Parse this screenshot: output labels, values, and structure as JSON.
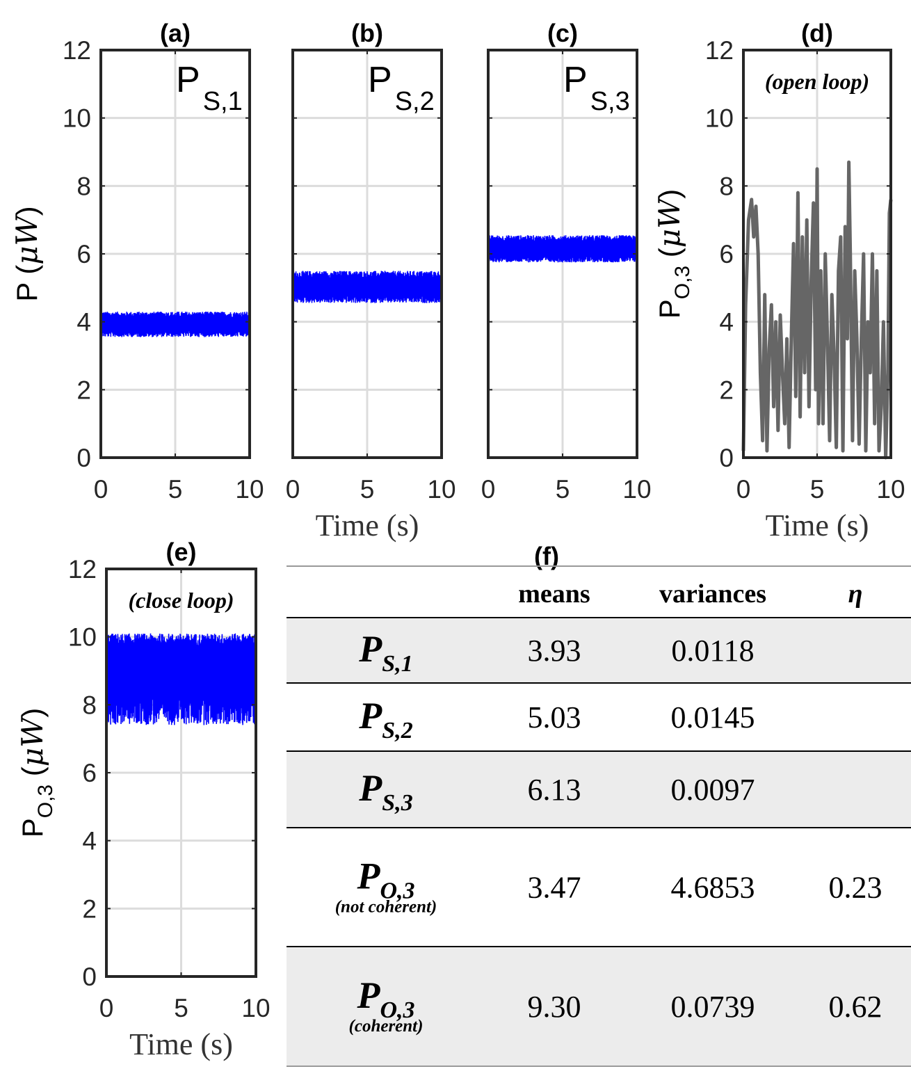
{
  "chart_data": [
    {
      "id": "a",
      "type": "line",
      "title": "(a)",
      "series_label": {
        "main": "P",
        "sub": "S,1"
      },
      "xlabel": "",
      "ylabel": {
        "main": "P (",
        "unit": "μW",
        "close": ")"
      },
      "xlim": [
        0,
        10
      ],
      "ylim": [
        0,
        12
      ],
      "xticks": [
        "0",
        "5",
        "10"
      ],
      "yticks": [
        "0",
        "2",
        "4",
        "6",
        "8",
        "10",
        "12"
      ],
      "grid": true,
      "line_color": "#0000ff",
      "series": [
        {
          "name": "P_S,1",
          "mean": 3.93,
          "min": 3.55,
          "max": 4.3
        }
      ]
    },
    {
      "id": "b",
      "type": "line",
      "title": "(b)",
      "series_label": {
        "main": "P",
        "sub": "S,2"
      },
      "xlabel": "Time (s)",
      "ylabel": "",
      "xlim": [
        0,
        10
      ],
      "ylim": [
        0,
        12
      ],
      "xticks": [
        "0",
        "5",
        "10"
      ],
      "grid": true,
      "line_color": "#0000ff",
      "series": [
        {
          "name": "P_S,2",
          "mean": 5.03,
          "min": 4.55,
          "max": 5.5
        }
      ]
    },
    {
      "id": "c",
      "type": "line",
      "title": "(c)",
      "series_label": {
        "main": "P",
        "sub": "S,3"
      },
      "xlabel": "",
      "ylabel": "",
      "xlim": [
        0,
        10
      ],
      "ylim": [
        0,
        12
      ],
      "xticks": [
        "0",
        "5",
        "10"
      ],
      "grid": true,
      "line_color": "#0000ff",
      "series": [
        {
          "name": "P_S,3",
          "mean": 6.13,
          "min": 5.75,
          "max": 6.55
        }
      ]
    },
    {
      "id": "d",
      "type": "line",
      "title": "(d)",
      "annotation": "(open loop)",
      "xlabel": "Time (s)",
      "ylabel": {
        "main": "P",
        "sub": "O,3",
        "unit_open": " (",
        "unit": "μW",
        "close": ")"
      },
      "xlim": [
        0,
        10
      ],
      "ylim": [
        0,
        12
      ],
      "xticks": [
        "0",
        "5",
        "10"
      ],
      "yticks": [
        "0",
        "2",
        "4",
        "6",
        "8",
        "10",
        "12"
      ],
      "grid": true,
      "line_color": "#666666",
      "series": [
        {
          "name": "P_O,3 open loop",
          "x": [
            0,
            0.15,
            0.35,
            0.55,
            0.7,
            0.85,
            1.0,
            1.15,
            1.3,
            1.45,
            1.6,
            1.75,
            1.9,
            2.05,
            2.2,
            2.35,
            2.5,
            2.65,
            2.8,
            2.95,
            3.1,
            3.25,
            3.4,
            3.55,
            3.7,
            3.85,
            4.0,
            4.15,
            4.3,
            4.45,
            4.6,
            4.75,
            4.9,
            5.0,
            5.1,
            5.25,
            5.4,
            5.55,
            5.7,
            5.85,
            6.0,
            6.15,
            6.3,
            6.45,
            6.6,
            6.75,
            6.9,
            7.05,
            7.15,
            7.25,
            7.4,
            7.55,
            7.7,
            7.85,
            8.0,
            8.15,
            8.3,
            8.45,
            8.6,
            8.75,
            8.9,
            9.05,
            9.2,
            9.35,
            9.5,
            9.65,
            9.8,
            9.9,
            10.0
          ],
          "y": [
            0.2,
            4.5,
            7.0,
            7.6,
            6.5,
            7.4,
            6.0,
            2.5,
            0.5,
            4.8,
            0.2,
            3.2,
            4.5,
            1.5,
            4.0,
            0.8,
            4.2,
            2.5,
            1.0,
            3.5,
            0.3,
            3.5,
            6.3,
            1.8,
            7.8,
            1.2,
            6.5,
            2.5,
            7.0,
            1.5,
            5.2,
            7.5,
            2.0,
            8.5,
            1.0,
            5.5,
            1.0,
            6.0,
            3.5,
            0.5,
            4.8,
            3.0,
            0.3,
            5.5,
            6.5,
            0.2,
            6.8,
            3.5,
            8.7,
            6.0,
            0.5,
            5.5,
            3.5,
            0.4,
            3.5,
            6.0,
            0.2,
            4.0,
            2.5,
            6.0,
            1.0,
            5.5,
            0.2,
            1.5,
            4.0,
            0.0,
            2.5,
            7.2,
            7.6
          ]
        }
      ]
    },
    {
      "id": "e",
      "type": "line",
      "title": "(e)",
      "annotation": "(close loop)",
      "xlabel": "Time (s)",
      "ylabel": {
        "main": "P",
        "sub": "O,3",
        "unit_open": " (",
        "unit": "μW",
        "close": ")"
      },
      "xlim": [
        0,
        10
      ],
      "ylim": [
        0,
        12
      ],
      "xticks": [
        "0",
        "5",
        "10"
      ],
      "yticks": [
        "0",
        "2",
        "4",
        "6",
        "8",
        "10",
        "12"
      ],
      "grid": true,
      "line_color": "#0000ff",
      "series": [
        {
          "name": "P_O,3 close loop",
          "mean": 9.3,
          "min": 7.4,
          "max": 10.1
        }
      ]
    },
    {
      "id": "f",
      "type": "table",
      "title": "(f)",
      "columns": [
        "",
        "means",
        "variances",
        "η"
      ],
      "rows": [
        {
          "label": "P",
          "sub": "S,1",
          "note": "",
          "mean": "3.93",
          "variance": "0.0118",
          "eta": "",
          "shaded": true
        },
        {
          "label": "P",
          "sub": "S,2",
          "note": "",
          "mean": "5.03",
          "variance": "0.0145",
          "eta": "",
          "shaded": false
        },
        {
          "label": "P",
          "sub": "S,3",
          "note": "",
          "mean": "6.13",
          "variance": "0.0097",
          "eta": "",
          "shaded": true
        },
        {
          "label": "P",
          "sub": "O,3",
          "note": "(not coherent)",
          "mean": "3.47",
          "variance": "4.6853",
          "eta": "0.23",
          "shaded": false
        },
        {
          "label": "P",
          "sub": "O,3",
          "note": "(coherent)",
          "mean": "9.30",
          "variance": "0.0739",
          "eta": "0.62",
          "shaded": true
        }
      ]
    }
  ]
}
